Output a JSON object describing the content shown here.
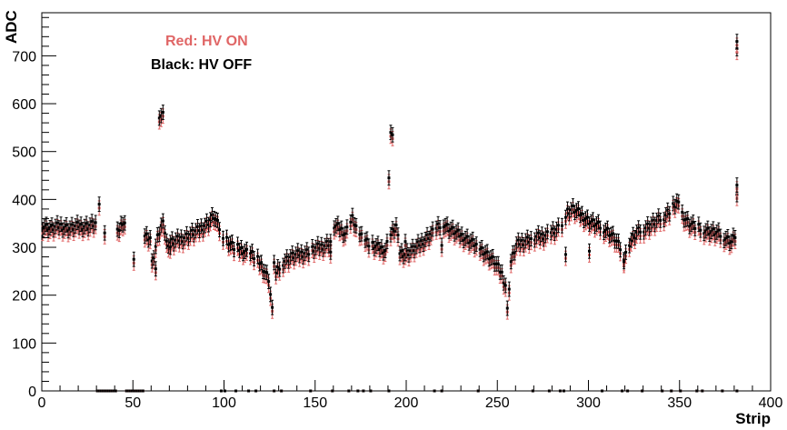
{
  "chart_data": {
    "type": "scatter",
    "title": "",
    "xlabel": "Strip",
    "ylabel": "ADC",
    "xlim": [
      0,
      400
    ],
    "ylim": [
      0,
      790
    ],
    "x_ticks": [
      0,
      50,
      100,
      150,
      200,
      250,
      300,
      350,
      400
    ],
    "y_ticks": [
      0,
      100,
      200,
      300,
      400,
      500,
      600,
      700
    ],
    "grid": false,
    "legend_position": "top-left",
    "error_bar_halfwidth": 15,
    "series": [
      {
        "name": "Red: HV ON",
        "color": "#e06666"
      },
      {
        "name": "Black: HV OFF",
        "color": "#000000"
      }
    ],
    "profile": {
      "strips_zero_values": [
        30,
        31,
        32,
        33,
        34,
        35,
        36,
        37,
        38,
        39,
        40,
        46,
        47,
        48,
        49,
        50,
        51,
        52,
        53,
        54,
        55,
        98,
        100,
        106,
        113,
        117,
        127,
        131,
        147,
        159,
        168,
        173,
        176,
        180,
        190,
        215,
        219,
        239,
        269,
        278,
        284,
        286,
        307,
        318,
        321,
        329,
        340,
        345,
        350,
        359,
        362,
        373,
        381
      ],
      "hv_off": [
        [
          0,
          345
        ],
        [
          5,
          340
        ],
        [
          10,
          345
        ],
        [
          15,
          340
        ],
        [
          20,
          345
        ],
        [
          25,
          345
        ],
        [
          29,
          350
        ],
        [
          32,
          375
        ],
        [
          36,
          355
        ],
        [
          41,
          330
        ],
        [
          44,
          355
        ],
        [
          48,
          345
        ],
        [
          52,
          340
        ],
        [
          56,
          325
        ],
        [
          59,
          320
        ],
        [
          60,
          265
        ],
        [
          63,
          318
        ],
        [
          66,
          355
        ],
        [
          68,
          308
        ],
        [
          72,
          312
        ],
        [
          76,
          318
        ],
        [
          80,
          325
        ],
        [
          85,
          335
        ],
        [
          90,
          350
        ],
        [
          94,
          365
        ],
        [
          97,
          340
        ],
        [
          100,
          320
        ],
        [
          105,
          300
        ],
        [
          110,
          295
        ],
        [
          115,
          285
        ],
        [
          120,
          265
        ],
        [
          124,
          235
        ],
        [
          126,
          168
        ],
        [
          128,
          245
        ],
        [
          132,
          270
        ],
        [
          136,
          280
        ],
        [
          140,
          285
        ],
        [
          145,
          290
        ],
        [
          150,
          298
        ],
        [
          155,
          305
        ],
        [
          158,
          312
        ],
        [
          160,
          345
        ],
        [
          163,
          340
        ],
        [
          166,
          330
        ],
        [
          168,
          345
        ],
        [
          170,
          360
        ],
        [
          173,
          335
        ],
        [
          176,
          320
        ],
        [
          180,
          305
        ],
        [
          184,
          300
        ],
        [
          188,
          295
        ],
        [
          190,
          320
        ],
        [
          194,
          345
        ],
        [
          196,
          290
        ],
        [
          200,
          288
        ],
        [
          205,
          300
        ],
        [
          210,
          318
        ],
        [
          215,
          335
        ],
        [
          220,
          350
        ],
        [
          223,
          340
        ],
        [
          228,
          328
        ],
        [
          233,
          318
        ],
        [
          238,
          305
        ],
        [
          243,
          290
        ],
        [
          248,
          270
        ],
        [
          252,
          245
        ],
        [
          254,
          222
        ],
        [
          255,
          168
        ],
        [
          257,
          270
        ],
        [
          260,
          305
        ],
        [
          265,
          315
        ],
        [
          270,
          320
        ],
        [
          275,
          325
        ],
        [
          280,
          332
        ],
        [
          285,
          342
        ],
        [
          288,
          375
        ],
        [
          291,
          380
        ],
        [
          295,
          370
        ],
        [
          300,
          355
        ],
        [
          305,
          345
        ],
        [
          310,
          335
        ],
        [
          314,
          318
        ],
        [
          317,
          298
        ],
        [
          319,
          282
        ],
        [
          322,
          310
        ],
        [
          326,
          330
        ],
        [
          330,
          340
        ],
        [
          335,
          350
        ],
        [
          340,
          362
        ],
        [
          345,
          380
        ],
        [
          348,
          395
        ],
        [
          351,
          370
        ],
        [
          355,
          350
        ],
        [
          360,
          340
        ],
        [
          365,
          335
        ],
        [
          370,
          330
        ],
        [
          375,
          320
        ],
        [
          378,
          312
        ],
        [
          380,
          325
        ]
      ],
      "outliers": [
        [
          31,
          390
        ],
        [
          66,
          355
        ],
        [
          70,
          300
        ],
        [
          34,
          330
        ],
        [
          50,
          275
        ],
        [
          62,
          255
        ],
        [
          64,
          570
        ],
        [
          65,
          575
        ],
        [
          66,
          582
        ],
        [
          127,
          268
        ],
        [
          158,
          290
        ],
        [
          190,
          445
        ],
        [
          191,
          540
        ],
        [
          192,
          535
        ],
        [
          199,
          312
        ],
        [
          219,
          304
        ],
        [
          287,
          285
        ],
        [
          300,
          292
        ],
        [
          319,
          270
        ],
        [
          381,
          410
        ],
        [
          381,
          430
        ],
        [
          381,
          715
        ],
        [
          381,
          730
        ]
      ],
      "hv_on_offset": -8
    }
  }
}
